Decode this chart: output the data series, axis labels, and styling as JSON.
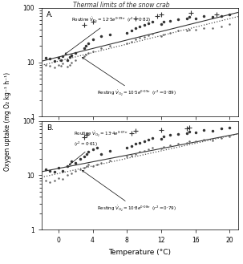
{
  "title": "Thermal limits of the snow crab",
  "xlabel": "Temperature (°C)",
  "ylabel": "Oxygen uptake (mg O₂ kg⁻¹ h⁻¹)",
  "xlim": [
    -2,
    21
  ],
  "xticks": [
    0,
    4,
    8,
    12,
    16,
    20
  ],
  "panel_A_label": "A.",
  "panel_B_label": "B.",
  "routine_A_params": [
    12.5,
    0.09
  ],
  "resting_A_params": [
    10.5,
    0.09
  ],
  "routine_B_params": [
    13.4,
    0.07
  ],
  "resting_B_params": [
    10.8,
    0.08
  ],
  "panel_A_routine_x": [
    -1.5,
    -1.0,
    -0.5,
    0.0,
    0.3,
    0.5,
    1.0,
    1.3,
    1.5,
    2.0,
    3.0,
    3.2,
    3.5,
    4.0,
    5.0,
    6.0,
    8.0,
    8.5,
    9.0,
    9.5,
    10.0,
    10.5,
    11.0,
    12.0,
    12.3,
    13.0,
    14.0,
    15.0,
    15.3,
    16.0,
    17.0,
    18.0,
    19.0,
    20.0
  ],
  "panel_A_routine_y": [
    12,
    11.5,
    10.5,
    12,
    11,
    13,
    11,
    12.5,
    13.5,
    15,
    18,
    20,
    22,
    26,
    30,
    32,
    35,
    38,
    42,
    45,
    48,
    52,
    55,
    50,
    55,
    58,
    62,
    65,
    68,
    65,
    70,
    68,
    72,
    75
  ],
  "panel_A_resting_x": [
    -1.5,
    -1.0,
    -0.5,
    0.0,
    0.3,
    0.5,
    1.0,
    1.3,
    1.5,
    2.0,
    3.0,
    3.2,
    3.5,
    4.0,
    5.0,
    6.0,
    8.0,
    8.5,
    9.0,
    9.5,
    10.0,
    10.5,
    11.0,
    12.0,
    12.3,
    13.0,
    14.0,
    15.0,
    15.3,
    16.0,
    17.0,
    18.0,
    19.0,
    20.0
  ],
  "panel_A_resting_y": [
    9,
    8.5,
    8,
    9,
    8.5,
    9.5,
    8.2,
    9,
    10,
    11,
    13,
    14,
    15,
    16,
    18,
    20,
    22,
    24,
    26,
    28,
    29,
    31,
    33,
    30,
    32,
    35,
    38,
    38,
    40,
    40,
    43,
    42,
    46,
    50
  ],
  "panel_A_outlier_x": [
    3.0,
    4.0,
    9.0,
    11.5,
    12.0,
    15.5,
    18.5
  ],
  "panel_A_outlier_y": [
    48,
    55,
    65,
    70,
    75,
    80,
    75
  ],
  "panel_B_routine_x": [
    -1.5,
    -1.0,
    -0.5,
    0.0,
    0.5,
    1.0,
    1.5,
    2.0,
    2.5,
    3.0,
    3.3,
    3.5,
    4.0,
    4.5,
    5.0,
    6.0,
    8.0,
    8.5,
    9.0,
    9.5,
    10.0,
    10.5,
    11.0,
    12.0,
    12.3,
    13.0,
    14.0,
    15.0,
    15.3,
    16.0,
    17.0,
    18.0,
    19.0,
    20.0
  ],
  "panel_B_routine_y": [
    13,
    12,
    11.5,
    14,
    12,
    15,
    18,
    17,
    20,
    22,
    25,
    27,
    30,
    32,
    25,
    28,
    32,
    35,
    38,
    40,
    42,
    45,
    48,
    47,
    52,
    55,
    58,
    60,
    63,
    62,
    68,
    65,
    72,
    75
  ],
  "panel_B_resting_x": [
    -1.5,
    -1.0,
    -0.5,
    0.0,
    0.5,
    1.0,
    1.5,
    2.0,
    2.5,
    3.0,
    3.3,
    3.5,
    4.0,
    4.5,
    5.0,
    6.0,
    8.0,
    8.5,
    9.0,
    9.5,
    10.0,
    10.5,
    11.0,
    12.0,
    12.3,
    13.0,
    14.0,
    15.0,
    15.3,
    16.0,
    17.0,
    18.0,
    19.0,
    20.0
  ],
  "panel_B_resting_y": [
    8,
    7.5,
    8,
    9,
    8.5,
    10,
    11,
    12,
    13,
    14,
    15,
    16,
    15,
    16,
    17,
    19,
    22,
    23,
    25,
    27,
    28,
    30,
    32,
    31,
    33,
    36,
    38,
    40,
    42,
    42,
    45,
    44,
    48,
    52
  ],
  "panel_B_outlier_x": [
    3.0,
    3.3,
    8.5,
    9.0,
    12.0,
    15.0,
    15.3
  ],
  "panel_B_outlier_y": [
    50,
    55,
    60,
    65,
    68,
    72,
    75
  ]
}
